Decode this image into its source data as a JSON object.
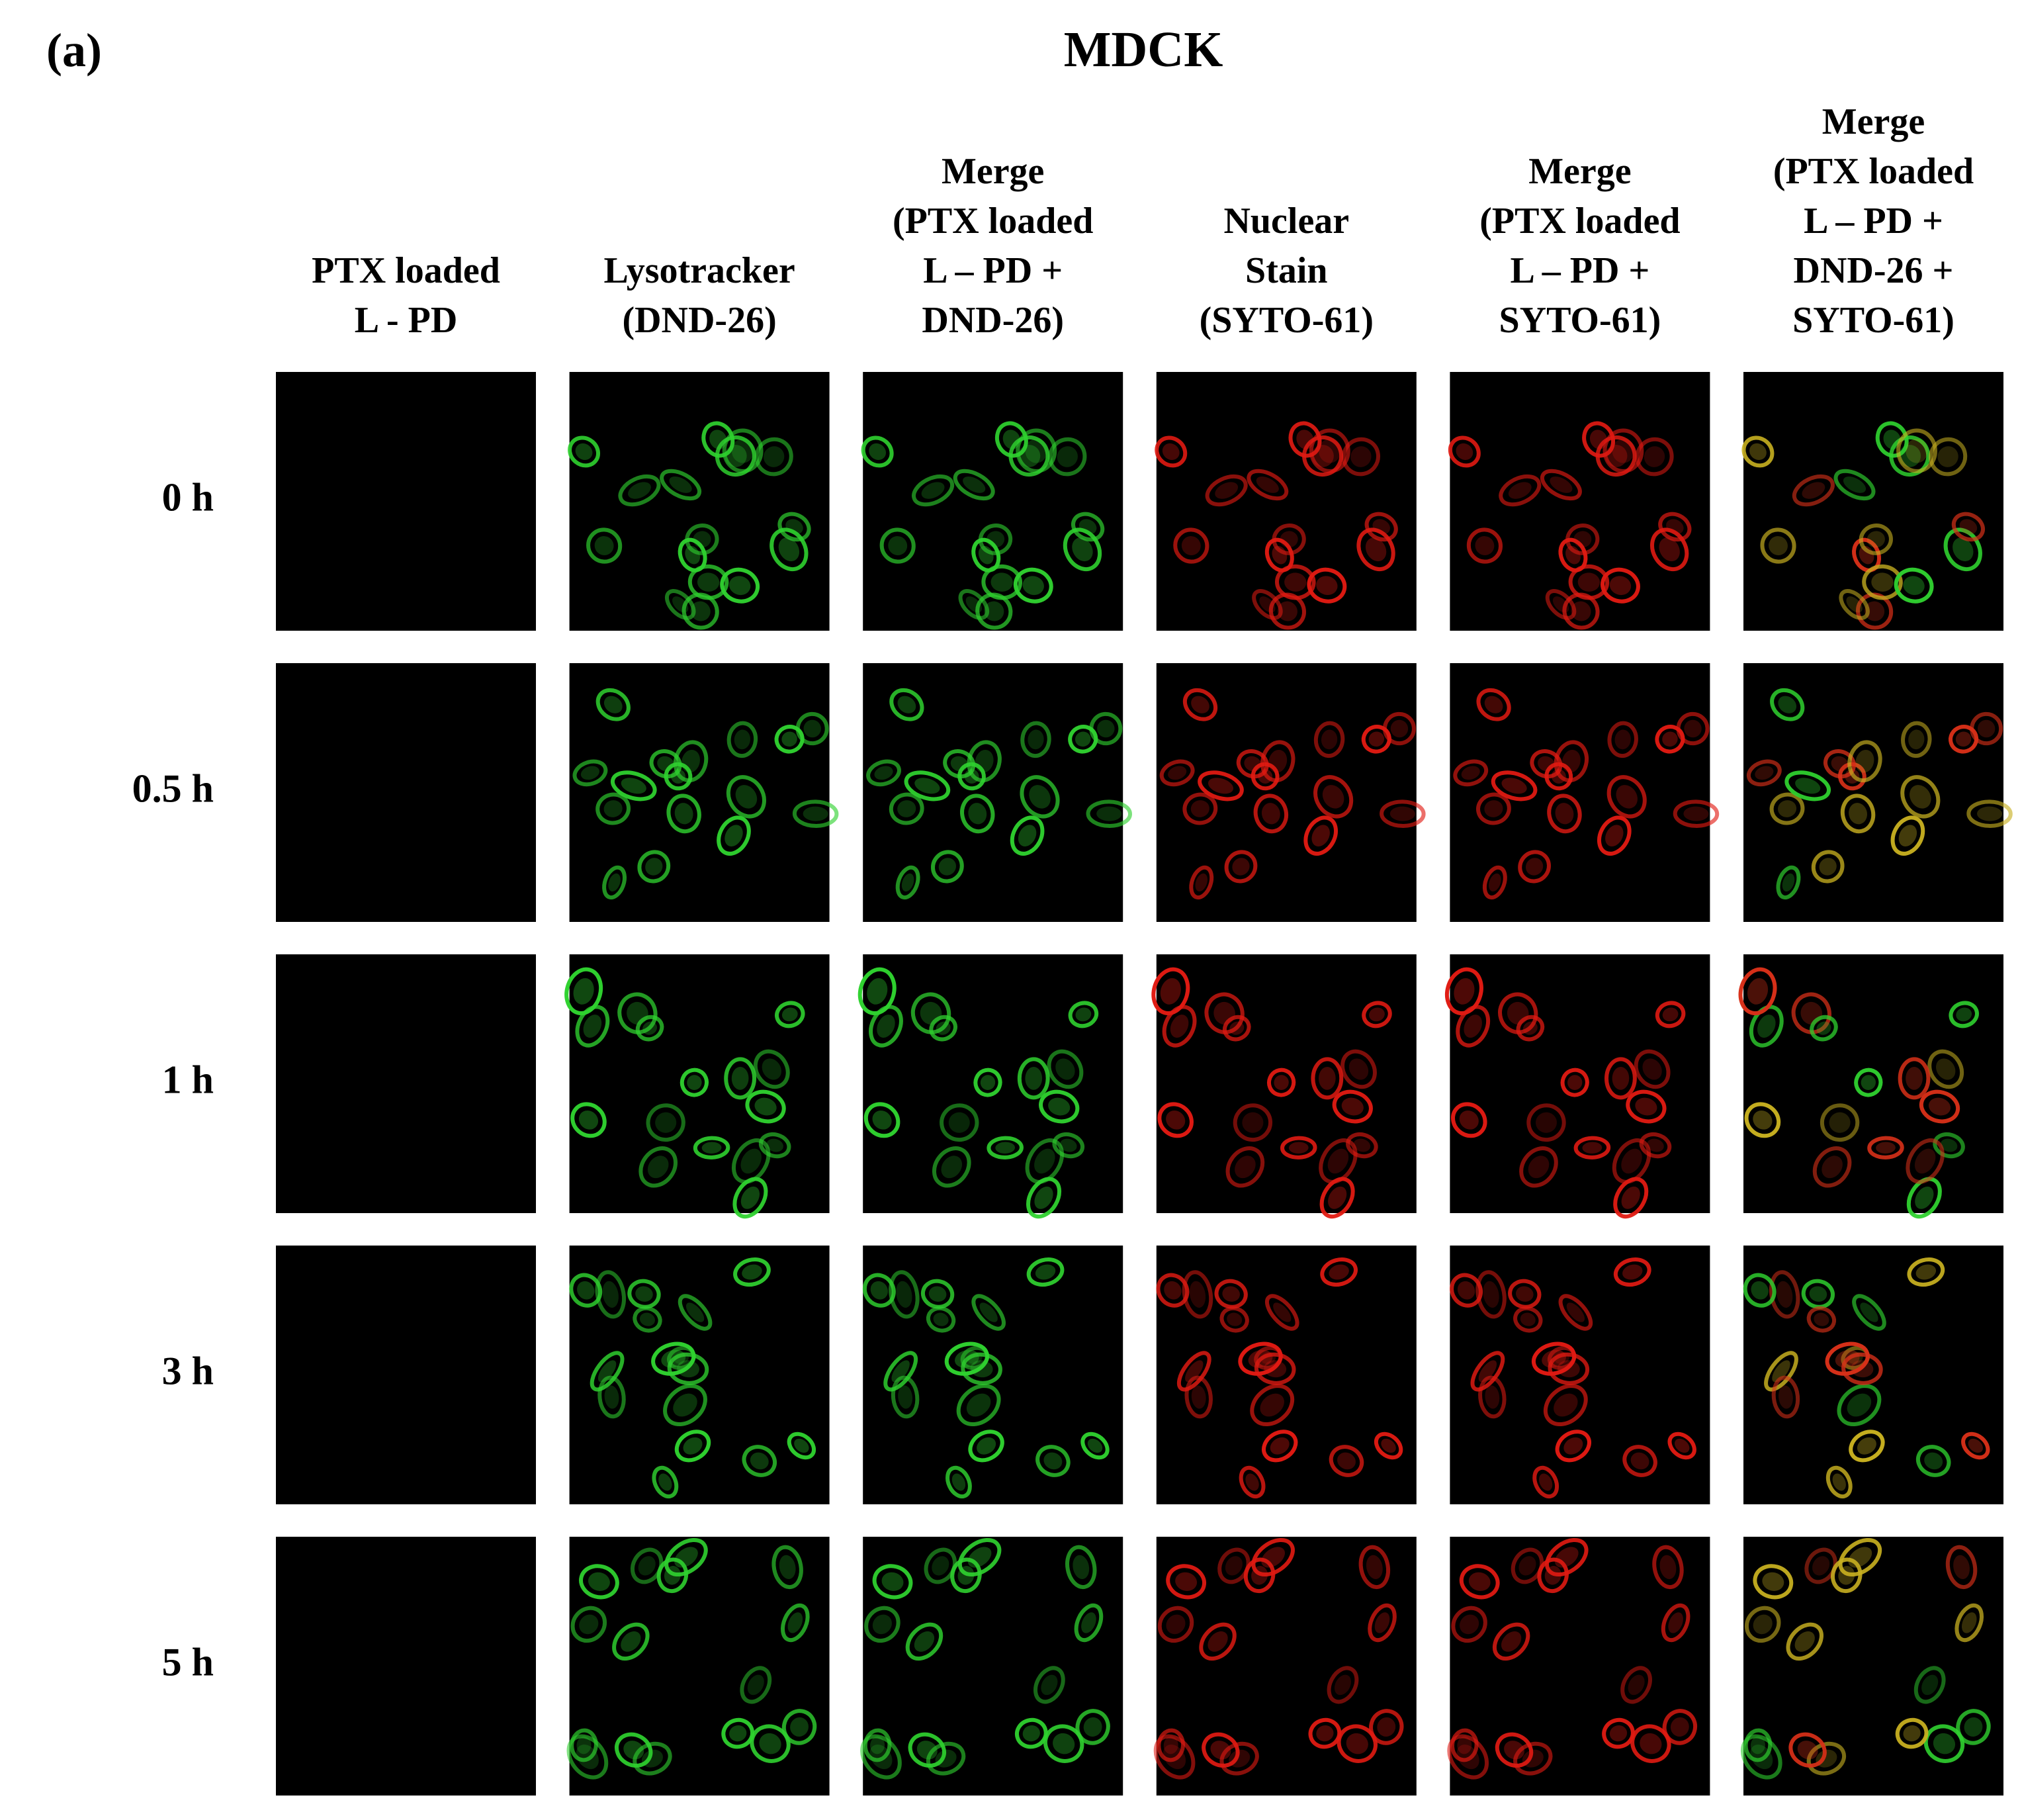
{
  "figure_label": "(a)",
  "title": "MDCK",
  "columns": [
    [
      "PTX loaded",
      "L - PD"
    ],
    [
      "Lysotracker",
      "(DND-26)"
    ],
    [
      "Merge",
      "(PTX loaded",
      "L – PD +",
      "DND-26)"
    ],
    [
      "Nuclear",
      "Stain",
      "(SYTO-61)"
    ],
    [
      "Merge",
      "(PTX loaded",
      "L – PD +",
      "SYTO-61)"
    ],
    [
      "Merge",
      "(PTX loaded",
      "L – PD +",
      "DND-26 +",
      "SYTO-61)"
    ]
  ],
  "rows": [
    "0 h",
    "0.5 h",
    "1 h",
    "3 h",
    "5 h"
  ]
}
